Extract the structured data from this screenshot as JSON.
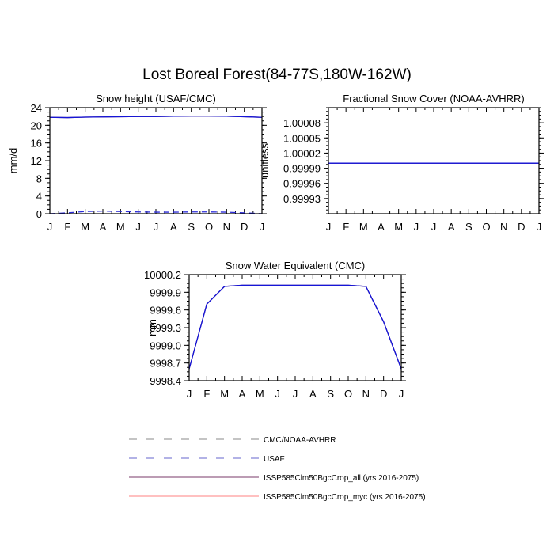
{
  "title": "Lost Boreal Forest(84-77S,180W-162W)",
  "month_labels": [
    "J",
    "F",
    "M",
    "A",
    "M",
    "J",
    "J",
    "A",
    "S",
    "O",
    "N",
    "D",
    "J"
  ],
  "legend": [
    {
      "label": "CMC/NOAA-AVHRR",
      "color": "#888888",
      "style": "dash"
    },
    {
      "label": "USAF",
      "color": "#6666cc",
      "style": "dash"
    },
    {
      "label": "ISSP585Clm50BgcCrop_all (yrs 2016-2075)",
      "color": "#7a3a6a",
      "style": "solid"
    },
    {
      "label": "ISSP585Clm50BgcCrop_myc (yrs 2016-2075)",
      "color": "#ff8080",
      "style": "solid"
    }
  ],
  "chart_data": [
    {
      "type": "line",
      "title": "Snow height (USAF/CMC)",
      "ylabel": "mm/d",
      "ylim": [
        0,
        24
      ],
      "yticks": [
        "0",
        "4",
        "8",
        "12",
        "16",
        "20",
        "24"
      ],
      "ytick_values": [
        0,
        4,
        8,
        12,
        16,
        20,
        24
      ],
      "series": [
        {
          "name": "ISSP585Clm50BgcCrop_all (yrs 2016-2075)",
          "color": "#4b1a6a",
          "dash": false,
          "values": [
            21.8,
            21.75,
            21.85,
            21.9,
            21.95,
            22.0,
            22.0,
            22.05,
            22.1,
            22.1,
            22.05,
            21.95,
            21.8
          ]
        },
        {
          "name": "ISSP585Clm50BgcCrop_myc (yrs 2016-2075)",
          "color": "#1515d8",
          "dash": false,
          "values": [
            21.8,
            21.75,
            21.85,
            21.9,
            21.95,
            22.0,
            22.0,
            22.05,
            22.1,
            22.1,
            22.05,
            21.95,
            21.8
          ]
        },
        {
          "name": "USAF",
          "color": "#2a2ad8",
          "dash": true,
          "values": [
            0.0,
            0.2,
            0.5,
            0.6,
            0.5,
            0.4,
            0.35,
            0.35,
            0.4,
            0.4,
            0.35,
            0.2,
            0.0
          ]
        }
      ]
    },
    {
      "type": "line",
      "title": "Fractional Snow Cover (NOAA-AVHRR)",
      "ylabel": "unitless",
      "ylim": [
        0.9999,
        1.00011
      ],
      "yticks": [
        "0.99993",
        "0.99996",
        "0.99999",
        "1.00002",
        "1.00005",
        "1.00008"
      ],
      "ytick_values": [
        0.99993,
        0.99996,
        0.99999,
        1.00002,
        1.00005,
        1.00008
      ],
      "series": [
        {
          "name": "ISSP585Clm50BgcCrop_all (yrs 2016-2075)",
          "color": "#4b1a6a",
          "dash": false,
          "values": [
            1.0,
            1.0,
            1.0,
            1.0,
            1.0,
            1.0,
            1.0,
            1.0,
            1.0,
            1.0,
            1.0,
            1.0,
            1.0
          ]
        },
        {
          "name": "ISSP585Clm50BgcCrop_myc (yrs 2016-2075)",
          "color": "#1515d8",
          "dash": false,
          "values": [
            1.0,
            1.0,
            1.0,
            1.0,
            1.0,
            1.0,
            1.0,
            1.0,
            1.0,
            1.0,
            1.0,
            1.0,
            1.0
          ]
        }
      ]
    },
    {
      "type": "line",
      "title": "Snow Water Equivalent (CMC)",
      "ylabel": "mm",
      "ylim": [
        9998.4,
        10000.2
      ],
      "yticks": [
        "9998.4",
        "9998.7",
        "9999.0",
        "9999.3",
        "9999.6",
        "9999.9",
        "10000.2"
      ],
      "ytick_values": [
        9998.4,
        9998.7,
        9999.0,
        9999.3,
        9999.6,
        9999.9,
        10000.2
      ],
      "series": [
        {
          "name": "ISSP585Clm50BgcCrop_all (yrs 2016-2075)",
          "color": "#4b1a6a",
          "dash": false,
          "values": [
            9998.6,
            9999.7,
            10000.0,
            10000.02,
            10000.02,
            10000.02,
            10000.02,
            10000.02,
            10000.02,
            10000.02,
            10000.0,
            9999.4,
            9998.6
          ]
        },
        {
          "name": "ISSP585Clm50BgcCrop_myc (yrs 2016-2075)",
          "color": "#1515d8",
          "dash": false,
          "values": [
            9998.6,
            9999.7,
            10000.0,
            10000.02,
            10000.02,
            10000.02,
            10000.02,
            10000.02,
            10000.02,
            10000.02,
            10000.0,
            9999.4,
            9998.6
          ]
        }
      ]
    }
  ]
}
